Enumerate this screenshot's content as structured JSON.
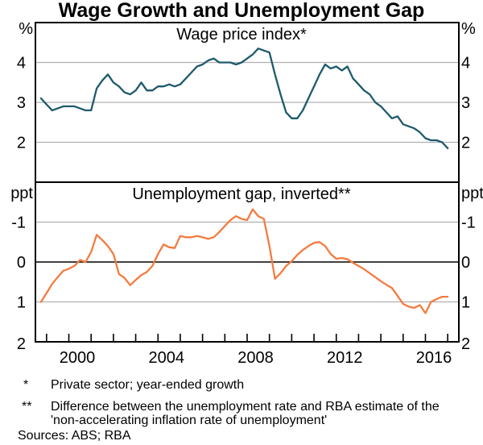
{
  "title": "Wage Growth and Unemployment Gap",
  "colors": {
    "wpi_line": "#1e5a6d",
    "gap_line": "#f47b3f",
    "grid": "#b0b0b0",
    "axis": "#000000"
  },
  "footnotes": [
    {
      "marker": "*",
      "lines": [
        "Private sector; year-ended growth"
      ]
    },
    {
      "marker": "**",
      "lines": [
        "Difference between the unemployment rate and RBA estimate of the",
        "'non-accelerating inflation rate of unemployment'"
      ]
    }
  ],
  "sources": "Sources: ABS; RBA",
  "chart_data": [
    {
      "type": "line",
      "panel": "top",
      "title": "Wage price index*",
      "unit_label": "%",
      "ylim": [
        1,
        5
      ],
      "yticks_labeled": [
        2,
        3,
        4
      ],
      "gridlines": [
        2,
        3,
        4
      ],
      "xlim": [
        1998.5,
        2017.5
      ],
      "x_start": 1998.75,
      "x_step": 0.25,
      "series": [
        {
          "name": "Wage price index, private sector, year-ended growth (%)",
          "color": "#1e5a6d",
          "values": [
            3.1,
            2.95,
            2.8,
            2.85,
            2.9,
            2.9,
            2.9,
            2.85,
            2.8,
            2.8,
            3.35,
            3.55,
            3.7,
            3.5,
            3.4,
            3.25,
            3.2,
            3.3,
            3.5,
            3.3,
            3.3,
            3.4,
            3.4,
            3.45,
            3.4,
            3.45,
            3.6,
            3.75,
            3.9,
            3.95,
            4.05,
            4.1,
            4.0,
            4.0,
            4.0,
            3.95,
            4.0,
            4.1,
            4.2,
            4.35,
            4.3,
            4.25,
            3.7,
            3.2,
            2.75,
            2.6,
            2.6,
            2.8,
            3.1,
            3.4,
            3.7,
            3.95,
            3.85,
            3.9,
            3.8,
            3.9,
            3.6,
            3.45,
            3.3,
            3.2,
            3.0,
            2.9,
            2.75,
            2.6,
            2.65,
            2.45,
            2.4,
            2.35,
            2.25,
            2.1,
            2.05,
            2.05,
            2.0,
            1.85
          ]
        }
      ]
    },
    {
      "type": "line",
      "panel": "bottom",
      "title": "Unemployment gap, inverted**",
      "unit_label": "ppt",
      "ylim_top_to_bottom": [
        -2,
        2
      ],
      "y_inverted": true,
      "yticks_labeled": [
        -1,
        0,
        1,
        2
      ],
      "gridlines": [
        -1,
        1
      ],
      "zero_line": 0,
      "xlim": [
        1998.5,
        2017.5
      ],
      "x_start": 1998.75,
      "x_step": 0.25,
      "x_year_tick_start": 1999,
      "x_year_tick_end": 2017,
      "x_year_labels": [
        2000,
        2004,
        2008,
        2012,
        2016
      ],
      "bottom_edge_labels": "2",
      "series": [
        {
          "name": "Unemployment gap, inverted (ppt)",
          "color": "#f47b3f",
          "values": [
            1.0,
            0.78,
            0.55,
            0.38,
            0.22,
            0.17,
            0.1,
            -0.05,
            0.0,
            -0.25,
            -0.68,
            -0.55,
            -0.4,
            -0.2,
            0.3,
            0.4,
            0.58,
            0.45,
            0.33,
            0.25,
            0.1,
            -0.2,
            -0.44,
            -0.37,
            -0.35,
            -0.65,
            -0.62,
            -0.62,
            -0.65,
            -0.62,
            -0.58,
            -0.62,
            -0.75,
            -0.9,
            -1.05,
            -1.15,
            -1.08,
            -1.05,
            -1.32,
            -1.15,
            -1.08,
            -0.4,
            0.42,
            0.28,
            0.1,
            -0.02,
            -0.18,
            -0.3,
            -0.4,
            -0.48,
            -0.5,
            -0.4,
            -0.2,
            -0.08,
            -0.1,
            -0.07,
            0.02,
            0.1,
            0.18,
            0.28,
            0.38,
            0.48,
            0.57,
            0.65,
            0.85,
            1.05,
            1.12,
            1.15,
            1.08,
            1.28,
            1.0,
            0.93,
            0.87,
            0.87
          ]
        }
      ]
    }
  ]
}
